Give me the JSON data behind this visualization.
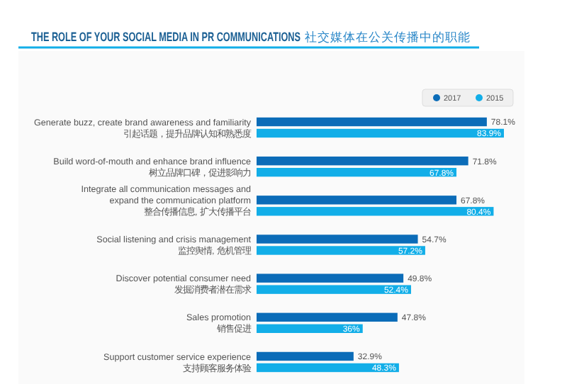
{
  "chart_data": {
    "type": "bar",
    "orientation": "horizontal",
    "title": "THE ROLE OF YOUR SOCIAL MEDIA IN PR COMMUNICATIONS",
    "subtitle": "社交媒体在公关传播中的职能",
    "categories": [
      "Generate buzz, create brand awareness and familiarity\n引起话题，提升品牌认知和熟悉度",
      "Build word-of-mouth and enhance brand influence\n树立品牌口碑，促进影响力",
      "Integrate all communication messages and\nexpand the communication platform\n整合传播信息, 扩大传播平台",
      "Social listening and crisis management\n监控舆情, 危机管理",
      "Discover potential consumer need\n发掘消费者潜在需求",
      "Sales promotion\n销售促进",
      "Support customer service experience\n支持顾客服务体验"
    ],
    "series": [
      {
        "name": "2017",
        "color": "#0b6cb8",
        "values": [
          78.1,
          71.8,
          67.8,
          54.7,
          49.8,
          47.8,
          32.9
        ],
        "value_labels": [
          "78.1%",
          "71.8%",
          "67.8%",
          "54.7%",
          "49.8%",
          "47.8%",
          "32.9%"
        ]
      },
      {
        "name": "2015",
        "color": "#12aee8",
        "values": [
          83.9,
          67.8,
          80.4,
          57.2,
          52.4,
          36,
          48.3
        ],
        "value_labels": [
          "83.9%",
          "67.8%",
          "80.4%",
          "57.2%",
          "52.4%",
          "36%",
          "48.3%"
        ]
      }
    ],
    "legend": "top right"
  }
}
